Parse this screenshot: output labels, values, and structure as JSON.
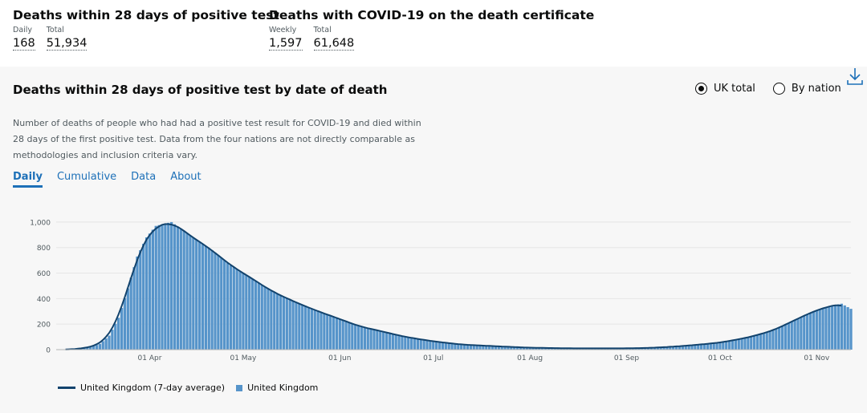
{
  "headline": {
    "deaths28": {
      "title": "Deaths within 28 days of positive test",
      "metrics": [
        {
          "label": "Daily",
          "value": "168"
        },
        {
          "label": "Total",
          "value": "51,934"
        }
      ]
    },
    "deathsCert": {
      "title": "Deaths with COVID-19 on the death certificate",
      "metrics": [
        {
          "label": "Weekly",
          "value": "1,597"
        },
        {
          "label": "Total",
          "value": "61,648"
        }
      ]
    }
  },
  "card": {
    "title": "Deaths within 28 days of positive test by date of death",
    "radio_uk": "UK total",
    "radio_nation": "By nation",
    "description": "Number of deaths of people who had had a positive test result for COVID-19 and died within 28 days of the first positive test. Data from the four nations are not directly comparable as methodologies and inclusion criteria vary.",
    "tabs": [
      "Daily",
      "Cumulative",
      "Data",
      "About"
    ],
    "active_tab": "Daily"
  },
  "colors": {
    "bar": "#5694ca",
    "line": "#12436d",
    "link": "#1d70b8"
  },
  "icons": {
    "download": "download-icon"
  },
  "chart_data": {
    "type": "bar",
    "x_range": [
      "2020-03-02",
      "2020-11-12"
    ],
    "ylim": [
      0,
      1100
    ],
    "yticks": [
      "0",
      "200",
      "400",
      "600",
      "800",
      "1,000"
    ],
    "xticks": [
      "01 Apr",
      "01 May",
      "01 Jun",
      "01 Jul",
      "01 Aug",
      "01 Sep",
      "01 Oct",
      "01 Nov"
    ],
    "daily_key_points": [
      [
        "2020-03-02",
        0
      ],
      [
        "2020-03-05",
        1
      ],
      [
        "2020-03-09",
        5
      ],
      [
        "2020-03-13",
        20
      ],
      [
        "2020-03-16",
        45
      ],
      [
        "2020-03-19",
        110
      ],
      [
        "2020-03-22",
        250
      ],
      [
        "2020-03-25",
        480
      ],
      [
        "2020-03-28",
        730
      ],
      [
        "2020-03-31",
        880
      ],
      [
        "2020-04-03",
        970
      ],
      [
        "2020-04-08",
        1000
      ],
      [
        "2020-04-12",
        930
      ],
      [
        "2020-04-16",
        860
      ],
      [
        "2020-04-21",
        780
      ],
      [
        "2020-04-27",
        660
      ],
      [
        "2020-05-03",
        570
      ],
      [
        "2020-05-10",
        460
      ],
      [
        "2020-05-17",
        380
      ],
      [
        "2020-05-24",
        310
      ],
      [
        "2020-06-01",
        240
      ],
      [
        "2020-06-07",
        185
      ],
      [
        "2020-06-15",
        140
      ],
      [
        "2020-06-22",
        100
      ],
      [
        "2020-07-01",
        65
      ],
      [
        "2020-07-10",
        40
      ],
      [
        "2020-07-20",
        28
      ],
      [
        "2020-08-01",
        15
      ],
      [
        "2020-08-15",
        10
      ],
      [
        "2020-09-01",
        10
      ],
      [
        "2020-09-10",
        15
      ],
      [
        "2020-09-20",
        30
      ],
      [
        "2020-10-01",
        55
      ],
      [
        "2020-10-10",
        95
      ],
      [
        "2020-10-18",
        150
      ],
      [
        "2020-10-24",
        220
      ],
      [
        "2020-10-31",
        300
      ],
      [
        "2020-11-05",
        340
      ],
      [
        "2020-11-09",
        360
      ],
      [
        "2020-11-12",
        320
      ]
    ],
    "series": [
      {
        "name": "United Kingdom (7-day average)",
        "type": "line"
      },
      {
        "name": "United Kingdom",
        "type": "bar"
      }
    ]
  }
}
